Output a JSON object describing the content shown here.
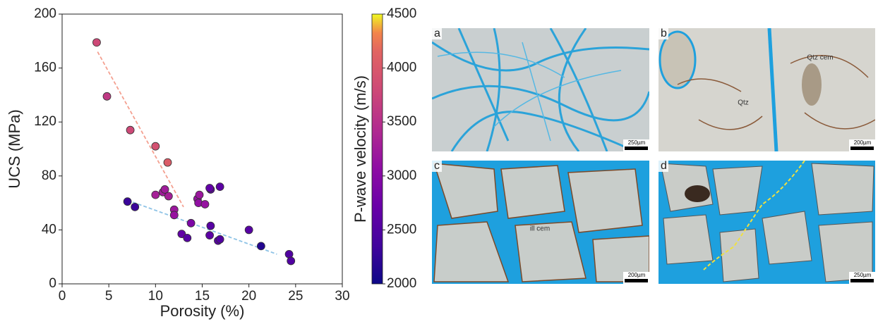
{
  "chart_data": {
    "type": "scatter",
    "xlabel": "Porosity (%)",
    "ylabel": "UCS (MPa)",
    "x": [
      3.7,
      4.8,
      7.3,
      10.0,
      11.3,
      10.0,
      10.8,
      11.0,
      11.4,
      12.0,
      12.0,
      14.5,
      14.7,
      14.6,
      15.3,
      16.9,
      15.9,
      15.8,
      7.0,
      7.8,
      12.8,
      13.4,
      13.8,
      15.9,
      15.8,
      16.7,
      16.9,
      20.0,
      21.3,
      24.3,
      24.5
    ],
    "values": [
      179,
      139,
      114,
      102,
      90,
      66,
      68,
      70,
      65,
      55,
      51,
      63,
      66,
      60,
      59,
      72,
      70,
      71,
      61,
      57,
      37,
      34,
      45,
      43,
      36,
      32,
      33,
      40,
      28,
      22,
      17
    ],
    "vp": [
      3800,
      3600,
      3800,
      3900,
      4050,
      3300,
      3250,
      3250,
      3300,
      3200,
      3150,
      3150,
      3200,
      3100,
      3150,
      2600,
      2600,
      2650,
      2300,
      2300,
      2650,
      2550,
      2900,
      2550,
      2600,
      2550,
      2500,
      2550,
      2150,
      2500,
      2500
    ],
    "colorbar": {
      "label": "P-wave velocity (m/s)",
      "colormap": "plasma",
      "lim": [
        2000,
        4500
      ],
      "ticks": [
        2000,
        2500,
        3000,
        3500,
        4000,
        4500
      ]
    },
    "trendlines": [
      {
        "color": "#f4a090",
        "x": [
          3.8,
          13.0
        ],
        "values": [
          172,
          57
        ]
      },
      {
        "color": "#8ec3e6",
        "x": [
          7.0,
          23.0
        ],
        "values": [
          62,
          22
        ]
      }
    ],
    "xlim": [
      0,
      30
    ],
    "xticks": [
      0,
      5,
      10,
      15,
      20,
      25,
      30
    ],
    "ylim": [
      0,
      200
    ],
    "yticks": [
      0,
      40,
      80,
      120,
      160,
      200
    ]
  },
  "panels": [
    {
      "label": "a",
      "scale": "250µm",
      "annotations": []
    },
    {
      "label": "b",
      "scale": "200µm",
      "annotations": [
        "Qtz",
        "Qtz cem"
      ]
    },
    {
      "label": "c",
      "scale": "200µm",
      "annotations": [
        "ill cem"
      ]
    },
    {
      "label": "d",
      "scale": "250µm",
      "annotations": []
    }
  ]
}
